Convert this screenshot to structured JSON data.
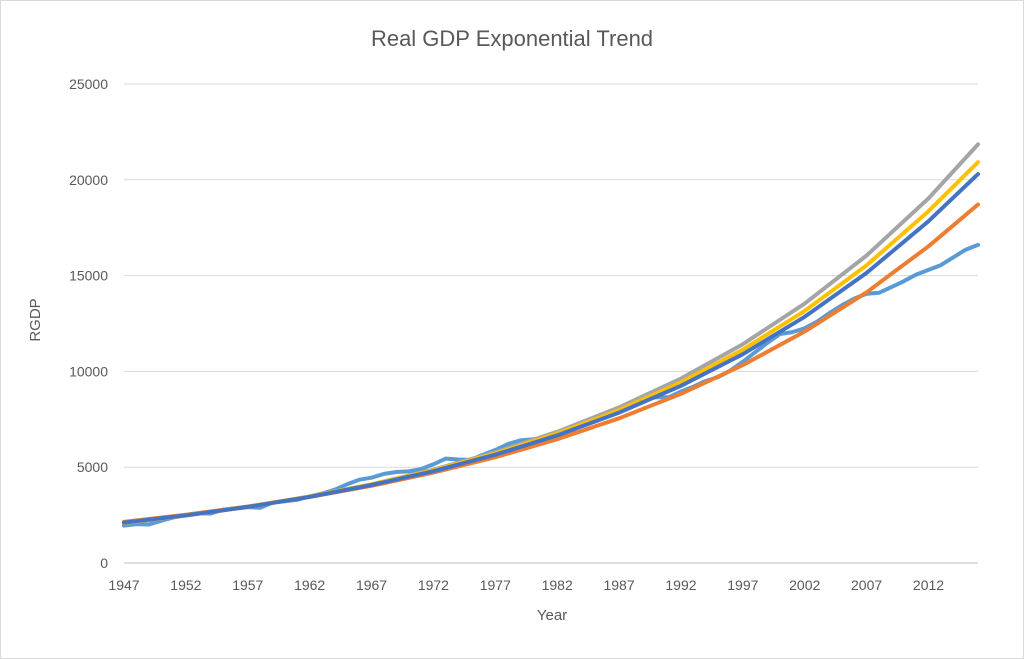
{
  "chart_data": {
    "type": "line",
    "title": "Real GDP Exponential Trend",
    "xlabel": "Year",
    "ylabel": "RGDP",
    "xlim": [
      1947,
      2016
    ],
    "ylim": [
      0,
      25000
    ],
    "grid": true,
    "x_ticks": [
      "1947",
      "1952",
      "1957",
      "1962",
      "1967",
      "1972",
      "1977",
      "1982",
      "1987",
      "1992",
      "1997",
      "2002",
      "2007",
      "2012"
    ],
    "y_ticks": [
      "0",
      "5000",
      "10000",
      "15000",
      "20000",
      "25000"
    ],
    "series": [
      {
        "color": "#5B9BD5",
        "x": [
          1947,
          1948,
          1949,
          1950,
          1951,
          1952,
          1953,
          1954,
          1955,
          1956,
          1957,
          1958,
          1959,
          1960,
          1961,
          1962,
          1963,
          1964,
          1965,
          1966,
          1967,
          1968,
          1969,
          1970,
          1971,
          1972,
          1973,
          1974,
          1975,
          1976,
          1977,
          1978,
          1979,
          1980,
          1981,
          1982,
          1983,
          1984,
          1985,
          1986,
          1987,
          1988,
          1989,
          1990,
          1991,
          1992,
          1993,
          1994,
          1995,
          1996,
          1997,
          1998,
          1999,
          2000,
          2001,
          2002,
          2003,
          2004,
          2005,
          2006,
          2007,
          2008,
          2009,
          2010,
          2011,
          2012,
          2013,
          2014,
          2015,
          2016
        ],
        "y": [
          1950,
          2030,
          2010,
          2200,
          2380,
          2500,
          2600,
          2580,
          2780,
          2850,
          2920,
          2880,
          3150,
          3220,
          3300,
          3480,
          3620,
          3820,
          4100,
          4350,
          4450,
          4650,
          4750,
          4780,
          4900,
          5150,
          5450,
          5400,
          5380,
          5650,
          5900,
          6200,
          6400,
          6450,
          6550,
          6480,
          6800,
          7250,
          7550,
          7800,
          8100,
          8350,
          8550,
          8650,
          8650,
          8950,
          9200,
          9500,
          9700,
          10050,
          10500,
          11000,
          11500,
          11950,
          12050,
          12250,
          12600,
          13050,
          13450,
          13800,
          14050,
          14100,
          14400,
          14700,
          15050,
          15300,
          15550,
          15950,
          16350,
          16600
        ]
      },
      {
        "color": "#ED7D31",
        "x": [
          1947,
          1952,
          1957,
          1962,
          1967,
          1972,
          1977,
          1982,
          1987,
          1992,
          1997,
          2002,
          2007,
          2012,
          2016
        ],
        "y": [
          2150,
          2520,
          2950,
          3450,
          4030,
          4720,
          5520,
          6460,
          7550,
          8830,
          10330,
          12080,
          14130,
          16530,
          18710
        ]
      },
      {
        "color": "#A5A5A5",
        "x": [
          1947,
          1952,
          1957,
          1962,
          1967,
          1972,
          1977,
          1982,
          1987,
          1992,
          1997,
          2002,
          2007,
          2012,
          2016
        ],
        "y": [
          2080,
          2470,
          2930,
          3470,
          4110,
          4870,
          5780,
          6850,
          8120,
          9630,
          11420,
          13540,
          16050,
          19030,
          21850
        ]
      },
      {
        "color": "#FFC000",
        "x": [
          1947,
          1952,
          1957,
          1962,
          1967,
          1972,
          1977,
          1982,
          1987,
          1992,
          1997,
          2002,
          2007,
          2012,
          2016
        ],
        "y": [
          2100,
          2490,
          2940,
          3470,
          4100,
          4840,
          5720,
          6760,
          7980,
          9430,
          11140,
          13160,
          15540,
          18360,
          20920
        ]
      },
      {
        "color": "#4472C4",
        "x": [
          1947,
          1952,
          1957,
          1962,
          1967,
          1972,
          1977,
          1982,
          1987,
          1992,
          1997,
          2002,
          2007,
          2012,
          2016
        ],
        "y": [
          2110,
          2490,
          2930,
          3450,
          4070,
          4790,
          5650,
          6660,
          7850,
          9250,
          10900,
          12850,
          15140,
          17840,
          20300
        ]
      }
    ]
  }
}
